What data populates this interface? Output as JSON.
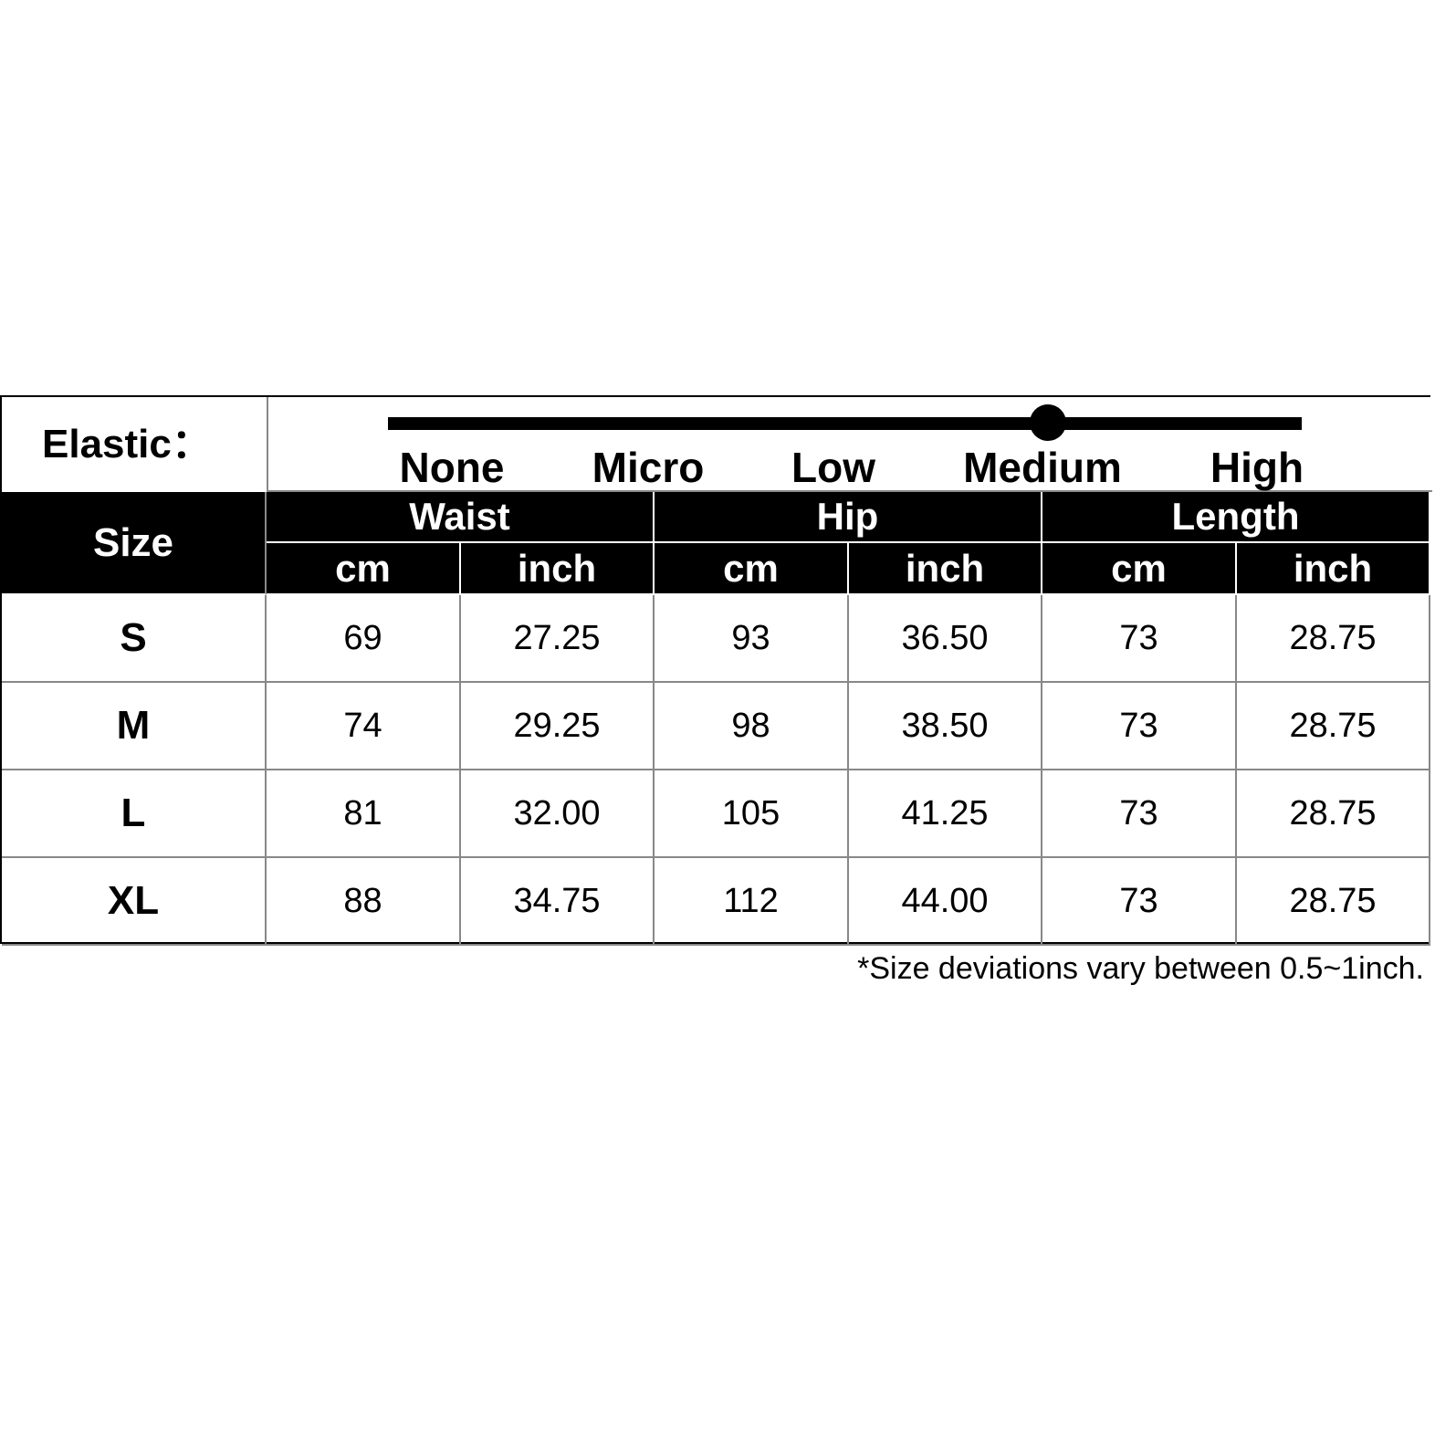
{
  "elastic": {
    "label": "Elastic：",
    "levels": [
      "None",
      "Micro",
      "Low",
      "Medium",
      "High"
    ],
    "selected_index": 3
  },
  "table": {
    "size_header": "Size",
    "groups": [
      "Waist",
      "Hip",
      "Length"
    ],
    "units": [
      "cm",
      "inch",
      "cm",
      "inch",
      "cm",
      "inch"
    ],
    "rows": [
      {
        "size": "S",
        "values": [
          "69",
          "27.25",
          "93",
          "36.50",
          "73",
          "28.75"
        ]
      },
      {
        "size": "M",
        "values": [
          "74",
          "29.25",
          "98",
          "38.50",
          "73",
          "28.75"
        ]
      },
      {
        "size": "L",
        "values": [
          "81",
          "32.00",
          "105",
          "41.25",
          "73",
          "28.75"
        ]
      },
      {
        "size": "XL",
        "values": [
          "88",
          "34.75",
          "112",
          "44.00",
          "73",
          "28.75"
        ]
      }
    ]
  },
  "note": "*Size deviations vary between 0.5~1inch."
}
